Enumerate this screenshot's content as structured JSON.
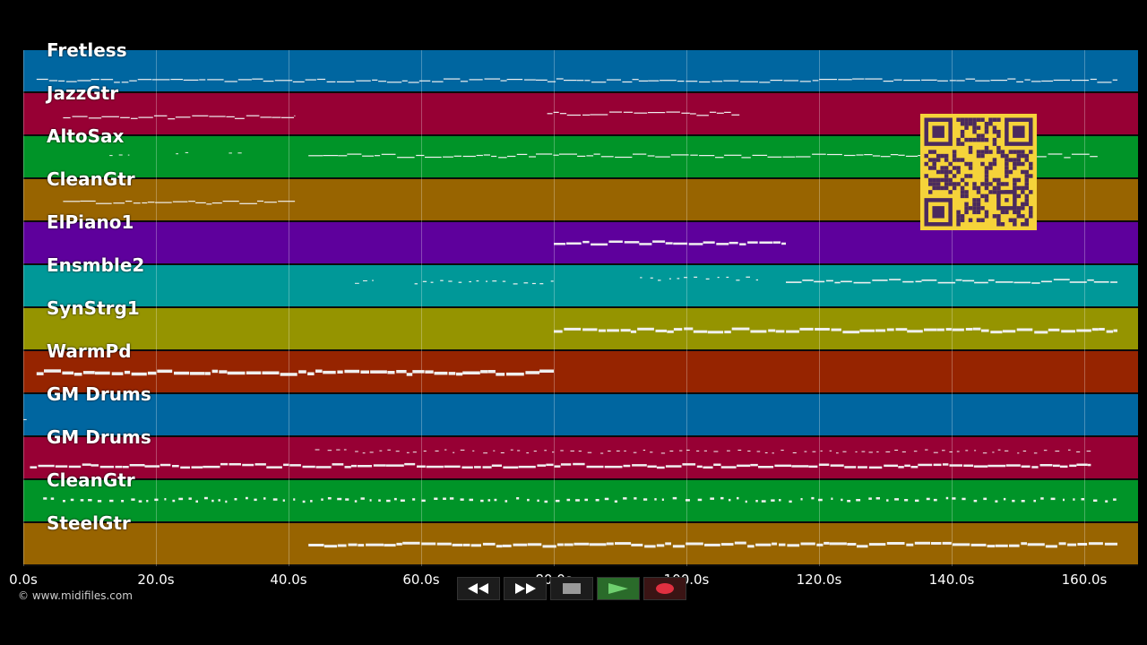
{
  "tracks": [
    {
      "name": "Fretless",
      "color": "#0066a0"
    },
    {
      "name": "JazzGtr",
      "color": "#970034"
    },
    {
      "name": "AltoSax",
      "color": "#009428"
    },
    {
      "name": "CleanGtr",
      "color": "#986400"
    },
    {
      "name": "ElPiano1",
      "color": "#5e009c"
    },
    {
      "name": "Ensmble2",
      "color": "#009898"
    },
    {
      "name": "SynStrg1",
      "color": "#959400"
    },
    {
      "name": "WarmPd",
      "color": "#962400"
    },
    {
      "name": "GM Drums",
      "color": "#0066a0"
    },
    {
      "name": "GM Drums",
      "color": "#970034"
    },
    {
      "name": "CleanGtr",
      "color": "#009428"
    },
    {
      "name": "SteelGtr",
      "color": "#986400"
    }
  ],
  "timeline": {
    "ticks": [
      "0.0s",
      "20.0s",
      "40.0s",
      "60.0s",
      "80.0s",
      "100.0s",
      "120.0s",
      "140.0s",
      "160.0s"
    ],
    "tick_seconds": [
      0,
      20,
      40,
      60,
      80,
      100,
      120,
      140,
      160
    ],
    "max_seconds": 168
  },
  "copyright": "© www.midifiles.com",
  "transport": {
    "rewind_icon": "rewind-icon",
    "forward_icon": "fast-forward-icon",
    "stop_icon": "stop-icon",
    "play_icon": "play-icon",
    "record_icon": "record-icon"
  },
  "qr_icon": "qr-code-icon",
  "note_color": "#f0f0f0"
}
